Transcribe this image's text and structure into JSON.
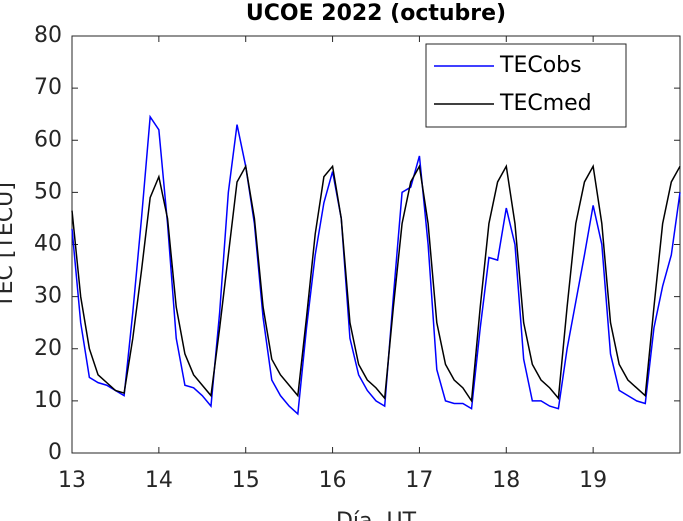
{
  "chart_data": {
    "type": "line",
    "title": "UCOE 2022 (octubre)",
    "xlabel": "Día, UT",
    "ylabel": "TEC [TECU]",
    "x": [
      13.0,
      13.1,
      13.2,
      13.3,
      13.4,
      13.5,
      13.6,
      13.7,
      13.8,
      13.9,
      14.0,
      14.1,
      14.2,
      14.3,
      14.4,
      14.5,
      14.6,
      14.7,
      14.8,
      14.9,
      15.0,
      15.1,
      15.2,
      15.3,
      15.4,
      15.5,
      15.6,
      15.7,
      15.8,
      15.9,
      16.0,
      16.1,
      16.2,
      16.3,
      16.4,
      16.5,
      16.6,
      16.7,
      16.8,
      16.9,
      17.0,
      17.1,
      17.2,
      17.3,
      17.4,
      17.5,
      17.6,
      17.7,
      17.8,
      17.9,
      18.0,
      18.1,
      18.2,
      18.3,
      18.4,
      18.5,
      18.6,
      18.7,
      18.8,
      18.9,
      19.0,
      19.1,
      19.2,
      19.3,
      19.4,
      19.5,
      19.6,
      19.7,
      19.8,
      19.9,
      20.0
    ],
    "series": [
      {
        "name": "TECobs",
        "color": "#0000ff",
        "values": [
          43,
          25,
          14.5,
          13.5,
          13,
          12,
          11,
          27,
          45,
          64.5,
          62,
          44,
          22,
          13,
          12.5,
          11,
          9,
          27,
          50,
          63,
          55,
          44,
          26,
          14,
          11,
          9,
          7.5,
          24,
          38,
          48,
          54,
          45,
          22,
          15,
          12,
          10,
          9,
          30,
          50,
          51,
          57,
          40,
          16,
          10,
          9.5,
          9.5,
          8.5,
          24,
          37.5,
          37,
          47,
          40,
          18,
          10,
          10,
          9,
          8.5,
          20,
          29,
          38,
          47.5,
          40,
          19,
          12,
          11,
          10,
          9.5,
          24,
          32,
          38,
          50
        ]
      },
      {
        "name": "TECmed",
        "color": "#000000",
        "values": [
          46.5,
          30,
          20,
          15,
          13.5,
          12,
          11.5,
          22,
          35,
          49,
          53,
          45,
          28,
          19,
          15,
          13,
          11,
          24,
          38,
          52,
          55,
          45,
          28,
          18,
          15,
          13,
          11,
          26,
          42,
          53,
          55,
          45,
          25,
          17,
          14,
          12.5,
          10.5,
          28,
          44,
          52,
          55,
          44,
          25,
          17,
          14,
          12.5,
          10,
          28,
          44,
          52,
          55,
          44,
          25,
          17,
          14,
          12.5,
          10.5,
          28,
          44,
          52,
          55,
          44,
          25,
          17,
          14,
          12.5,
          11,
          28,
          44,
          52,
          55
        ]
      }
    ],
    "xlim": [
      13,
      20
    ],
    "xticks": [
      13,
      14,
      15,
      16,
      17,
      18,
      19
    ],
    "ylim": [
      0,
      80
    ],
    "yticks": [
      0,
      10,
      20,
      30,
      40,
      50,
      60,
      70,
      80
    ],
    "legend": "northeast",
    "grid": false
  }
}
